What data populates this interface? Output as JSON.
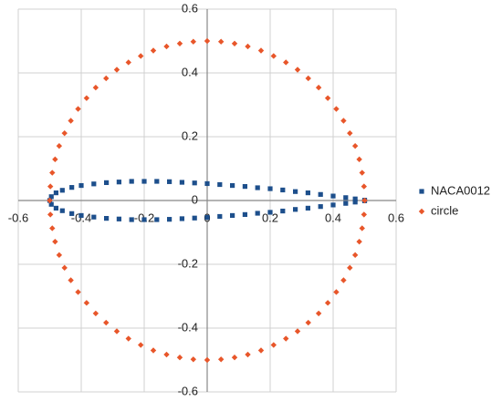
{
  "chart_data": {
    "type": "scatter",
    "xlim": [
      -0.6,
      0.6
    ],
    "ylim": [
      -0.6,
      0.6
    ],
    "xticks": [
      -0.6,
      -0.4,
      -0.2,
      0,
      0.2,
      0.4,
      0.6
    ],
    "yticks": [
      -0.6,
      -0.4,
      -0.2,
      0,
      0.2,
      0.4,
      0.6
    ],
    "grid": true,
    "legend": "right",
    "series": [
      {
        "name": "NACA0012",
        "color": "#1d4f8c",
        "marker": "square",
        "x": [
          0.5,
          0.47,
          0.44,
          0.4,
          0.36,
          0.32,
          0.28,
          0.24,
          0.2,
          0.16,
          0.12,
          0.08,
          0.04,
          0,
          -0.04,
          -0.08,
          -0.12,
          -0.16,
          -0.2,
          -0.24,
          -0.28,
          -0.32,
          -0.36,
          -0.4,
          -0.43,
          -0.46,
          -0.48,
          -0.495,
          -0.5,
          -0.495,
          -0.48,
          -0.46,
          -0.43,
          -0.4,
          -0.36,
          -0.32,
          -0.28,
          -0.24,
          -0.2,
          -0.16,
          -0.12,
          -0.08,
          -0.04,
          0,
          0.04,
          0.08,
          0.12,
          0.16,
          0.2,
          0.24,
          0.28,
          0.32,
          0.36,
          0.4,
          0.44,
          0.47,
          0.5
        ],
        "values": [
          0.001,
          0.005,
          0.009,
          0.014,
          0.019,
          0.024,
          0.028,
          0.033,
          0.037,
          0.04,
          0.044,
          0.047,
          0.05,
          0.053,
          0.055,
          0.057,
          0.059,
          0.06,
          0.06,
          0.06,
          0.058,
          0.056,
          0.052,
          0.047,
          0.041,
          0.032,
          0.024,
          0.012,
          0,
          -0.012,
          -0.024,
          -0.032,
          -0.041,
          -0.047,
          -0.052,
          -0.056,
          -0.058,
          -0.06,
          -0.06,
          -0.06,
          -0.059,
          -0.057,
          -0.055,
          -0.053,
          -0.05,
          -0.047,
          -0.044,
          -0.04,
          -0.037,
          -0.033,
          -0.028,
          -0.024,
          -0.019,
          -0.014,
          -0.009,
          -0.005,
          -0.001
        ]
      },
      {
        "name": "circle",
        "color": "#e8562a",
        "marker": "diamond",
        "x": [
          0.5,
          0.498,
          0.492,
          0.483,
          0.47,
          0.453,
          0.433,
          0.41,
          0.383,
          0.354,
          0.321,
          0.287,
          0.25,
          0.211,
          0.171,
          0.129,
          0.087,
          0.044,
          0,
          -0.044,
          -0.087,
          -0.129,
          -0.171,
          -0.211,
          -0.25,
          -0.287,
          -0.321,
          -0.354,
          -0.383,
          -0.41,
          -0.433,
          -0.453,
          -0.47,
          -0.483,
          -0.492,
          -0.498,
          -0.5,
          -0.498,
          -0.492,
          -0.483,
          -0.47,
          -0.453,
          -0.433,
          -0.41,
          -0.383,
          -0.354,
          -0.321,
          -0.287,
          -0.25,
          -0.211,
          -0.171,
          -0.129,
          -0.087,
          -0.044,
          0,
          0.044,
          0.087,
          0.129,
          0.171,
          0.211,
          0.25,
          0.287,
          0.321,
          0.354,
          0.383,
          0.41,
          0.433,
          0.453,
          0.47,
          0.483,
          0.492,
          0.498
        ],
        "values": [
          0,
          0.044,
          0.087,
          0.129,
          0.171,
          0.211,
          0.25,
          0.287,
          0.321,
          0.354,
          0.383,
          0.41,
          0.433,
          0.453,
          0.47,
          0.483,
          0.492,
          0.498,
          0.5,
          0.498,
          0.492,
          0.483,
          0.47,
          0.453,
          0.433,
          0.41,
          0.383,
          0.354,
          0.321,
          0.287,
          0.25,
          0.211,
          0.171,
          0.129,
          0.087,
          0.044,
          0,
          -0.044,
          -0.087,
          -0.129,
          -0.171,
          -0.211,
          -0.25,
          -0.287,
          -0.321,
          -0.354,
          -0.383,
          -0.41,
          -0.433,
          -0.453,
          -0.47,
          -0.483,
          -0.492,
          -0.498,
          -0.5,
          -0.498,
          -0.492,
          -0.483,
          -0.47,
          -0.453,
          -0.433,
          -0.41,
          -0.383,
          -0.354,
          -0.321,
          -0.287,
          -0.25,
          -0.211,
          -0.171,
          -0.129,
          -0.087,
          -0.044
        ]
      }
    ]
  }
}
